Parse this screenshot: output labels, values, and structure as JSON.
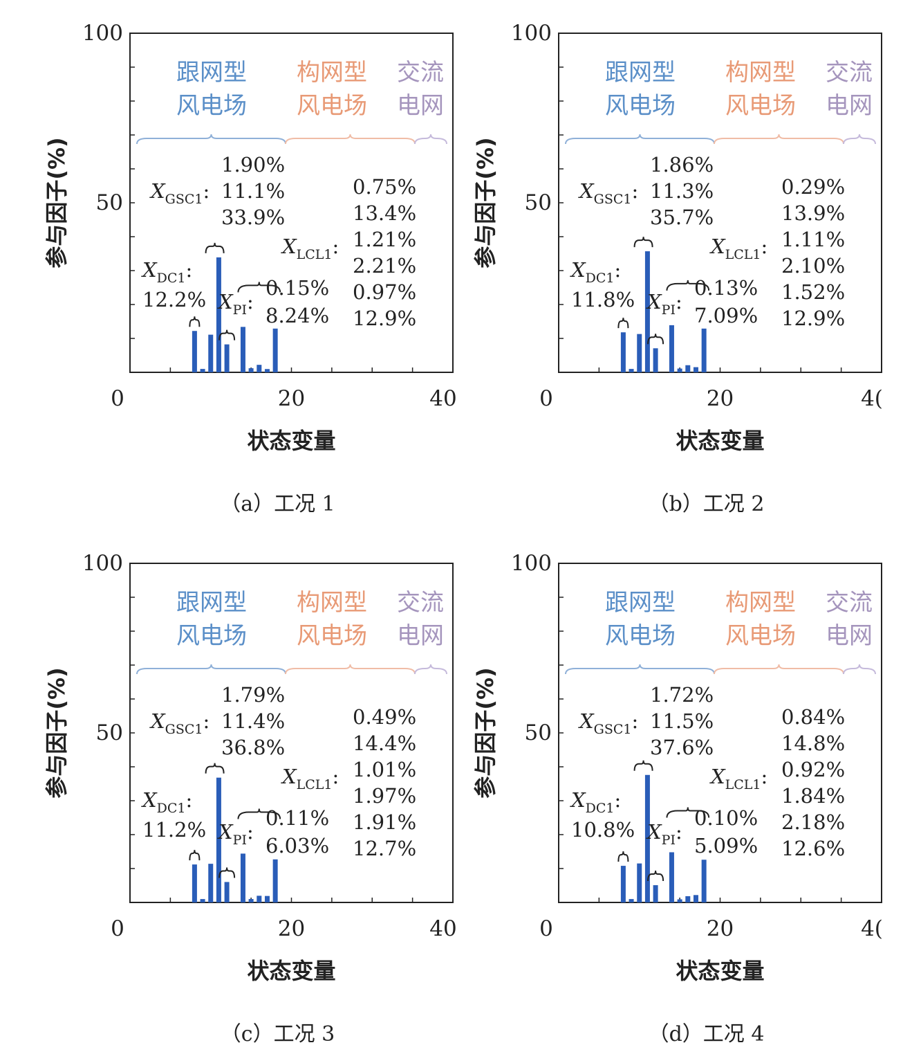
{
  "colors": {
    "bar": "#2a5db8",
    "followRegion": "#5b8fc8",
    "formRegion": "#e89a76",
    "acRegion": "#a595bd",
    "braceFollow": "#8fb0d8",
    "braceForm": "#f0bca6",
    "braceAC": "#c5badb"
  },
  "common": {
    "y_ticks": [
      "100",
      "50"
    ],
    "x_ticks": [
      "0",
      "20",
      "40"
    ],
    "x_ticks_clipped": [
      "0",
      "20",
      "4("
    ],
    "ylabel": "参与因子(%)",
    "xlabel": "状态变量",
    "region_follow": [
      "跟网型",
      "风电场"
    ],
    "region_form": [
      "构网型",
      "风电场"
    ],
    "region_ac": [
      "交流",
      "电网"
    ],
    "label_gsc": "X",
    "label_gsc_sub": "GSC1",
    "label_dc": "X",
    "label_dc_sub": "DC1",
    "label_pi": "X",
    "label_pi_sub": "PI",
    "label_lcl": "X",
    "label_lcl_sub": "LCL1",
    "colon": ":"
  },
  "chart_data": [
    {
      "type": "bar",
      "caption": "（a）工况 1",
      "xlim": [
        0,
        40
      ],
      "ylim": [
        0,
        100
      ],
      "x": [
        8,
        9,
        10,
        11,
        12,
        14,
        15,
        16,
        17,
        18
      ],
      "values": [
        12.2,
        1.0,
        11.1,
        33.9,
        8.24,
        13.4,
        1.21,
        2.21,
        0.97,
        12.9
      ],
      "gsc": [
        "1.90%",
        "11.1%",
        "33.9%"
      ],
      "dc": "12.2%",
      "pi": [
        "0.15%",
        "8.24%"
      ],
      "lcl": [
        "0.75%",
        "13.4%",
        "1.21%",
        "2.21%",
        "0.97%",
        "12.9%"
      ]
    },
    {
      "type": "bar",
      "caption": "（b）工况 2",
      "xlim": [
        0,
        40
      ],
      "ylim": [
        0,
        100
      ],
      "x": [
        8,
        9,
        10,
        11,
        12,
        14,
        15,
        16,
        17,
        18
      ],
      "values": [
        11.8,
        1.0,
        11.3,
        35.7,
        7.09,
        13.9,
        1.11,
        2.1,
        1.52,
        12.9
      ],
      "gsc": [
        "1.86%",
        "11.3%",
        "35.7%"
      ],
      "dc": "11.8%",
      "pi": [
        "0.13%",
        "7.09%"
      ],
      "lcl": [
        "0.29%",
        "13.9%",
        "1.11%",
        "2.10%",
        "1.52%",
        "12.9%"
      ]
    },
    {
      "type": "bar",
      "caption": "（c）工况 3",
      "xlim": [
        0,
        40
      ],
      "ylim": [
        0,
        100
      ],
      "x": [
        8,
        9,
        10,
        11,
        12,
        14,
        15,
        16,
        17,
        18
      ],
      "values": [
        11.2,
        1.0,
        11.4,
        36.8,
        6.03,
        14.4,
        1.01,
        1.97,
        1.91,
        12.7
      ],
      "gsc": [
        "1.79%",
        "11.4%",
        "36.8%"
      ],
      "dc": "11.2%",
      "pi": [
        "0.11%",
        "6.03%"
      ],
      "lcl": [
        "0.49%",
        "14.4%",
        "1.01%",
        "1.97%",
        "1.91%",
        "12.7%"
      ]
    },
    {
      "type": "bar",
      "caption": "（d）工况 4",
      "xlim": [
        0,
        40
      ],
      "ylim": [
        0,
        100
      ],
      "x": [
        8,
        9,
        10,
        11,
        12,
        14,
        15,
        16,
        17,
        18
      ],
      "values": [
        10.8,
        1.0,
        11.5,
        37.6,
        5.09,
        14.8,
        0.92,
        1.84,
        2.18,
        12.6
      ],
      "gsc": [
        "1.72%",
        "11.5%",
        "37.6%"
      ],
      "dc": "10.8%",
      "pi": [
        "0.10%",
        "5.09%"
      ],
      "lcl": [
        "0.84%",
        "14.8%",
        "0.92%",
        "1.84%",
        "2.18%",
        "12.6%"
      ]
    }
  ]
}
